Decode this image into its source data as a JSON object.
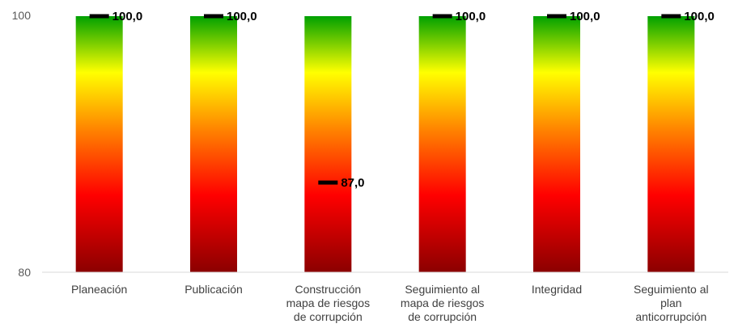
{
  "chart_data": {
    "type": "bar",
    "categories": [
      [
        "Planeación"
      ],
      [
        "Publicación"
      ],
      [
        "Construcción",
        "mapa de riesgos",
        "de corrupción"
      ],
      [
        "Seguimiento al",
        "mapa de riesgos",
        "de corrupción"
      ],
      [
        "Integridad"
      ],
      [
        "Seguimiento al",
        "plan",
        "anticorrupción"
      ]
    ],
    "series": [
      {
        "values": [
          100.0,
          100.0,
          87.0,
          100.0,
          100.0,
          100.0
        ]
      }
    ],
    "data_labels": [
      "100,0",
      "100,0",
      "87,0",
      "100,0",
      "100,0",
      "100,0"
    ],
    "ylim": [
      80,
      100
    ],
    "yticks": [
      "80",
      "100"
    ],
    "gradient_colors": [
      "#8b0000",
      "#ff0000",
      "#ff8000",
      "#ffff00",
      "#00a000"
    ],
    "marker_color": "#000000",
    "axis_color": "#d9d9d9",
    "grid": false,
    "title": "",
    "xlabel": "",
    "ylabel": ""
  }
}
